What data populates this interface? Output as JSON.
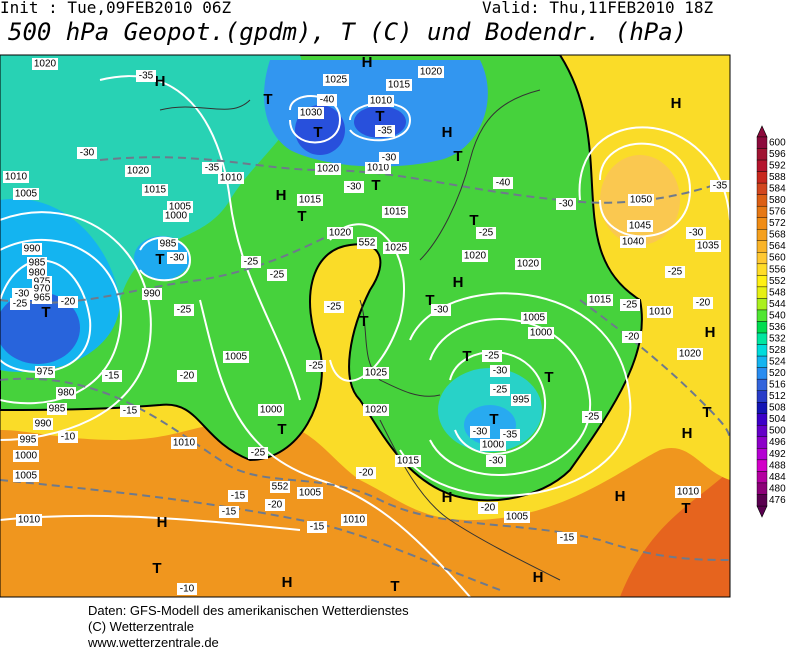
{
  "header": {
    "init": "Init : Tue,09FEB2010 06Z",
    "valid": "Valid: Thu,11FEB2010 18Z",
    "title": "500 hPa Geopot.(gpdm), T (C) und Bodendr. (hPa)"
  },
  "legend": {
    "levels": [
      600,
      596,
      592,
      588,
      584,
      580,
      576,
      572,
      568,
      564,
      560,
      556,
      552,
      548,
      544,
      540,
      536,
      532,
      528,
      524,
      520,
      516,
      512,
      508,
      504,
      500,
      496,
      492,
      488,
      484,
      480,
      476
    ],
    "colors": [
      "#8c0a3c",
      "#a01432",
      "#b4142d",
      "#c8281e",
      "#d2461e",
      "#dc5f14",
      "#e67814",
      "#f08c14",
      "#f5a01e",
      "#fab428",
      "#ffc832",
      "#ffdc28",
      "#fff014",
      "#e6f014",
      "#aaf01e",
      "#50e632",
      "#00dc50",
      "#00e6a0",
      "#00dcdc",
      "#14b4f0",
      "#288cf0",
      "#3264dc",
      "#283cc8",
      "#1414b4",
      "#3c00c8",
      "#6400c8",
      "#8c00c8",
      "#b400d2",
      "#d200c8",
      "#b400a0",
      "#8c0078",
      "#5a0050"
    ]
  },
  "map_labels": [
    "H",
    "T",
    "H",
    "T",
    "T",
    "H",
    "T",
    "H",
    "T",
    "H",
    "T",
    "T",
    "T",
    "T",
    "H",
    "T",
    "T",
    "T",
    "T",
    "T",
    "T",
    "H",
    "H",
    "T",
    "H",
    "T",
    "H",
    "T",
    "H",
    "H",
    "H",
    "T",
    "1020",
    "1025",
    "1020",
    "1015",
    "1030",
    "1010",
    "1020",
    "1010",
    "1015",
    "1010",
    "1005",
    "1005",
    "1000",
    "1015",
    "1020",
    "1010",
    "1015",
    "985",
    "990",
    "990",
    "985",
    "980",
    "975",
    "970",
    "965",
    "975",
    "980",
    "985",
    "990",
    "995",
    "1000",
    "1005",
    "1010",
    "1010",
    "1005",
    "1000",
    "1005",
    "1010",
    "1015",
    "1020",
    "1025",
    "1025",
    "1020",
    "1020",
    "1020",
    "1015",
    "1005",
    "1000",
    "995",
    "1000",
    "1005",
    "1010",
    "1020",
    "1010",
    "1035",
    "1040",
    "1045",
    "1050",
    "-35",
    "-40",
    "-35",
    "-30",
    "-35",
    "-30",
    "-30",
    "-40",
    "-30",
    "-35",
    "-30",
    "-25",
    "-25",
    "-25",
    "-30",
    "-25",
    "-20",
    "-25",
    "-25",
    "-30",
    "-25",
    "-30",
    "-25",
    "-30",
    "-35",
    "-30",
    "-20",
    "-25",
    "-15",
    "-15",
    "-10",
    "-25",
    "-20",
    "-20",
    "-15",
    "-15",
    "-15",
    "-20",
    "-15",
    "-10",
    "-25",
    "-25",
    "-25",
    "-20",
    "-30",
    "-20",
    "552",
    "552"
  ],
  "footer": [
    "Daten: GFS-Modell des amerikanischen Wetterdienstes",
    "(C) Wetterzentrale",
    "www.wetterzentrale.de"
  ]
}
